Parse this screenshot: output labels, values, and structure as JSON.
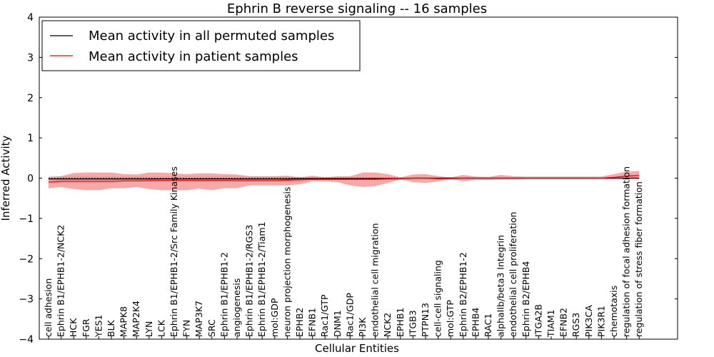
{
  "chart_data": {
    "type": "line",
    "title": "Ephrin B reverse signaling -- 16 samples",
    "xlabel": "Cellular Entities",
    "ylabel": "Inferred Activity",
    "ylim": [
      -4,
      4
    ],
    "yticks": [
      4,
      3,
      2,
      1,
      0,
      -1,
      -2,
      -3,
      -4
    ],
    "ytick_labels": [
      "4",
      "3",
      "2",
      "1",
      "0",
      "−1",
      "−2",
      "−3",
      "−4"
    ],
    "grid": false,
    "legend": {
      "placement": "top-left",
      "entries": [
        {
          "label": "Mean activity in all permuted samples",
          "color": "#000000"
        },
        {
          "label": "Mean activity in patient samples",
          "color": "#ff0000"
        }
      ]
    },
    "categories": [
      "cell adhesion",
      "Ephrin B1/EPHB1-2/NCK2",
      "HCK",
      "FGR",
      "YES1",
      "BLK",
      "MAPK8",
      "MAP2K4",
      "LYN",
      "LCK",
      "Ephrin B1/EPHB1-2/Src Family Kinases",
      "FYN",
      "MAP3K7",
      "SRC",
      "Ephrin B1/EPHB1-2",
      "angiogenesis",
      "Ephrin B1/EPHB1-2/RGS3",
      "Ephrin B1/EPHB1-2/Tiam1",
      "mol:GDP",
      "neuron projection morphogenesis",
      "EPHB2",
      "EFNB1",
      "Rac1/GTP",
      "DNM1",
      "Rac1/GDP",
      "PI3K",
      "endothelial cell migration",
      "NCK2",
      "EPHB1",
      "ITGB3",
      "PTPN13",
      "cell-cell signaling",
      "mol:GTP",
      "Ephrin B2/EPHB1-2",
      "EPHB4",
      "RAC1",
      "alphaIIb/beta3 Integrin",
      "endothelial cell proliferation",
      "Ephrin B2/EPHB4",
      "ITGA2B",
      "TIAM1",
      "EFNB2",
      "RGS3",
      "PIK3CA",
      "PIK3R1",
      "chemotaxis",
      "regulation of focal adhesion formation",
      "regulation of stress fiber formation"
    ],
    "series": [
      {
        "name": "Mean activity in all permuted samples",
        "color": "#000000",
        "values": [
          -0.02,
          -0.02,
          -0.02,
          -0.02,
          -0.02,
          -0.02,
          -0.02,
          -0.02,
          -0.02,
          -0.02,
          -0.02,
          -0.02,
          -0.02,
          -0.02,
          -0.02,
          -0.02,
          -0.02,
          -0.02,
          -0.02,
          -0.02,
          -0.01,
          -0.01,
          -0.01,
          -0.01,
          -0.01,
          -0.01,
          -0.01,
          -0.01,
          -0.01,
          0.0,
          0.0,
          0.0,
          0.0,
          0.0,
          0.0,
          0.0,
          0.0,
          0.0,
          0.0,
          0.0,
          0.0,
          0.0,
          0.0,
          0.0,
          0.0,
          0.0,
          0.0,
          0.0
        ],
        "band_upper": [
          0.06,
          0.05,
          0.05,
          0.05,
          0.04,
          0.04,
          0.04,
          0.04,
          0.04,
          0.04,
          0.04,
          0.04,
          0.04,
          0.04,
          0.04,
          0.04,
          0.04,
          0.04,
          0.04,
          0.04,
          0.03,
          0.03,
          0.03,
          0.03,
          0.03,
          0.03,
          0.03,
          0.02,
          0.02,
          0.02,
          0.02,
          0.02,
          0.02,
          0.02,
          0.02,
          0.02,
          0.02,
          0.02,
          0.02,
          0.02,
          0.02,
          0.02,
          0.02,
          0.02,
          0.02,
          0.02,
          0.02,
          0.02
        ],
        "band_lower": [
          -0.1,
          -0.09,
          -0.09,
          -0.08,
          -0.08,
          -0.08,
          -0.08,
          -0.08,
          -0.08,
          -0.08,
          -0.08,
          -0.08,
          -0.08,
          -0.08,
          -0.08,
          -0.08,
          -0.07,
          -0.07,
          -0.07,
          -0.06,
          -0.05,
          -0.05,
          -0.05,
          -0.05,
          -0.05,
          -0.04,
          -0.04,
          -0.04,
          -0.04,
          -0.04,
          -0.04,
          -0.04,
          -0.04,
          -0.04,
          -0.04,
          -0.04,
          -0.04,
          -0.04,
          -0.04,
          -0.04,
          -0.04,
          -0.04,
          -0.04,
          -0.04,
          -0.04,
          -0.04,
          -0.05,
          -0.06
        ]
      },
      {
        "name": "Mean activity in patient samples",
        "color": "#ff0000",
        "values": [
          -0.1,
          -0.08,
          -0.08,
          -0.08,
          -0.08,
          -0.08,
          -0.07,
          -0.07,
          -0.06,
          -0.06,
          -0.06,
          -0.06,
          -0.06,
          -0.06,
          -0.06,
          -0.06,
          -0.06,
          -0.06,
          -0.06,
          -0.05,
          -0.04,
          -0.03,
          -0.03,
          -0.03,
          -0.03,
          -0.03,
          -0.03,
          -0.02,
          -0.01,
          0.0,
          0.0,
          -0.01,
          -0.01,
          0.0,
          0.0,
          0.0,
          0.0,
          0.0,
          0.0,
          0.0,
          0.0,
          0.0,
          0.0,
          0.0,
          0.0,
          0.02,
          0.05,
          0.07
        ],
        "band_upper": [
          0.02,
          0.05,
          0.13,
          0.14,
          0.14,
          0.14,
          0.1,
          0.09,
          0.14,
          0.14,
          0.12,
          0.1,
          0.12,
          0.12,
          0.1,
          0.09,
          0.05,
          0.05,
          0.05,
          0.06,
          0.02,
          0.06,
          0.02,
          0.05,
          0.05,
          0.14,
          0.14,
          0.1,
          0.02,
          0.09,
          0.1,
          0.05,
          0.02,
          0.08,
          0.04,
          0.03,
          0.08,
          0.05,
          0.04,
          0.04,
          0.04,
          0.04,
          0.04,
          0.04,
          0.04,
          0.1,
          0.16,
          0.18
        ],
        "band_lower": [
          -0.25,
          -0.22,
          -0.27,
          -0.3,
          -0.3,
          -0.25,
          -0.25,
          -0.22,
          -0.27,
          -0.3,
          -0.3,
          -0.3,
          -0.26,
          -0.3,
          -0.25,
          -0.25,
          -0.18,
          -0.18,
          -0.18,
          -0.18,
          -0.15,
          -0.08,
          -0.08,
          -0.1,
          -0.18,
          -0.22,
          -0.2,
          -0.12,
          -0.03,
          -0.1,
          -0.12,
          -0.08,
          -0.02,
          -0.08,
          -0.04,
          -0.05,
          -0.03,
          -0.03,
          -0.02,
          -0.02,
          -0.02,
          -0.02,
          -0.02,
          -0.02,
          -0.02,
          -0.02,
          0.0,
          -0.02
        ]
      }
    ],
    "reference_line": {
      "name": "zero baseline (dotted)",
      "y": 0
    }
  }
}
